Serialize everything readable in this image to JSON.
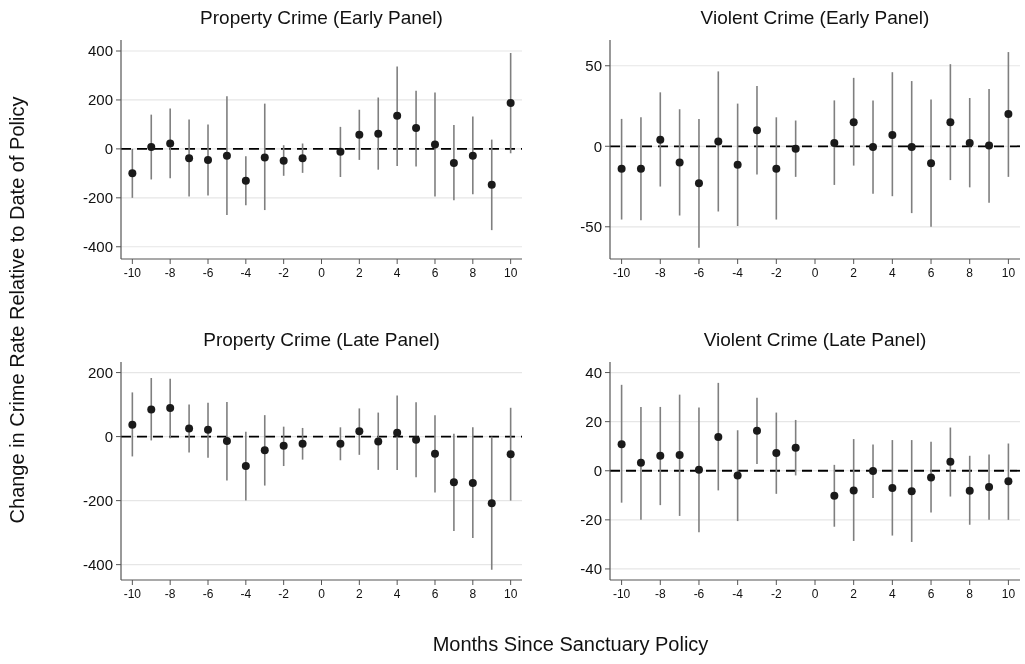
{
  "chart_data": [
    {
      "type": "scatter",
      "title": "Property Crime (Early Panel)",
      "ylabel": "Change in Crime Rate Relative to Date of Policy",
      "x": [
        -10,
        -9,
        -8,
        -7,
        -6,
        -5,
        -4,
        -3,
        -2,
        -1,
        1,
        2,
        3,
        4,
        5,
        6,
        7,
        8,
        9,
        10
      ],
      "series": [
        {
          "color": "#1a1a1a",
          "values": [
            -100,
            8,
            22,
            -38,
            -45,
            -28,
            -130,
            -35,
            -48,
            -38,
            -12,
            58,
            62,
            135,
            85,
            18,
            -58,
            -28,
            -147,
            188
          ],
          "errors": [
            [
              -200,
              0
            ],
            [
              -125,
              140
            ],
            [
              -120,
              165
            ],
            [
              -195,
              120
            ],
            [
              -190,
              100
            ],
            [
              -270,
              215
            ],
            [
              -230,
              -30
            ],
            [
              -250,
              185
            ],
            [
              -110,
              15
            ],
            [
              -98,
              22
            ],
            [
              -115,
              90
            ],
            [
              -45,
              160
            ],
            [
              -85,
              210
            ],
            [
              -70,
              337
            ],
            [
              -72,
              238
            ],
            [
              -195,
              230
            ],
            [
              -210,
              98
            ],
            [
              -185,
              132
            ],
            [
              -332,
              38
            ],
            [
              -18,
              392
            ]
          ]
        }
      ],
      "xlim": [
        -10.6,
        10.6
      ],
      "xticks": [
        -10,
        -8,
        -6,
        -4,
        -2,
        0,
        2,
        4,
        6,
        8,
        10
      ],
      "ylim": [
        -450,
        445
      ],
      "yticks": [
        -400,
        -200,
        0,
        200,
        400
      ],
      "ref_lines": [
        {
          "axis": "y",
          "value": 0,
          "color": "#000000",
          "line_style": "dashed"
        }
      ],
      "grid": "y",
      "marker": "circle"
    },
    {
      "type": "scatter",
      "title": "Violent Crime (Early Panel)",
      "x": [
        -10,
        -9,
        -8,
        -7,
        -6,
        -5,
        -4,
        -3,
        -2,
        -1,
        1,
        2,
        3,
        4,
        5,
        6,
        7,
        8,
        9,
        10
      ],
      "series": [
        {
          "color": "#1a1a1a",
          "values": [
            -14,
            -14,
            4,
            -10,
            -23,
            3,
            -11.5,
            10,
            -14,
            -1.5,
            2,
            15,
            -0.5,
            7,
            -0.5,
            -10.5,
            15,
            2,
            0.5,
            20
          ],
          "errors": [
            [
              -45.5,
              17
            ],
            [
              -46,
              18
            ],
            [
              -25,
              33.5
            ],
            [
              -43,
              23
            ],
            [
              -63,
              17
            ],
            [
              -40.5,
              46.5
            ],
            [
              -49.5,
              26.5
            ],
            [
              -17.5,
              37.5
            ],
            [
              -45.5,
              18
            ],
            [
              -19,
              16
            ],
            [
              -24,
              28.5
            ],
            [
              -12,
              42.5
            ],
            [
              -29.5,
              28.5
            ],
            [
              -31,
              46
            ],
            [
              -41.5,
              40.5
            ],
            [
              -50,
              29
            ],
            [
              -21,
              51
            ],
            [
              -25.5,
              30
            ],
            [
              -35,
              35.5
            ],
            [
              -19,
              58.5
            ]
          ]
        }
      ],
      "xlim": [
        -10.6,
        10.6
      ],
      "xticks": [
        -10,
        -8,
        -6,
        -4,
        -2,
        0,
        2,
        4,
        6,
        8,
        10
      ],
      "ylim": [
        -70,
        66
      ],
      "yticks": [
        -50,
        0,
        50
      ],
      "ref_lines": [
        {
          "axis": "y",
          "value": 0,
          "color": "#000000",
          "line_style": "dashed"
        }
      ],
      "grid": "y",
      "marker": "circle"
    },
    {
      "type": "scatter",
      "title": "Property Crime (Late Panel)",
      "xlabel": "Months Since Sanctuary Policy",
      "x": [
        -10,
        -9,
        -8,
        -7,
        -6,
        -5,
        -4,
        -3,
        -2,
        -1,
        1,
        2,
        3,
        4,
        5,
        6,
        7,
        8,
        9,
        10
      ],
      "series": [
        {
          "color": "#1a1a1a",
          "values": [
            37,
            85,
            89,
            25,
            21,
            -14,
            -92,
            -43,
            -29,
            -22,
            -22,
            17,
            -15,
            12,
            -10,
            -54,
            -143,
            -145,
            -208,
            -55
          ],
          "errors": [
            [
              -62,
              138
            ],
            [
              -12,
              183
            ],
            [
              -5,
              181
            ],
            [
              -50,
              100
            ],
            [
              -66,
              106
            ],
            [
              -137,
              108
            ],
            [
              -200,
              15
            ],
            [
              -153,
              67
            ],
            [
              -92,
              31
            ],
            [
              -72,
              27
            ],
            [
              -74,
              29
            ],
            [
              -57,
              88
            ],
            [
              -104,
              75
            ],
            [
              -104,
              128
            ],
            [
              -127,
              107
            ],
            [
              -175,
              67
            ],
            [
              -295,
              9
            ],
            [
              -317,
              29
            ],
            [
              -416,
              0
            ],
            [
              -200,
              90
            ]
          ]
        }
      ],
      "xlim": [
        -10.6,
        10.6
      ],
      "xticks": [
        -10,
        -8,
        -6,
        -4,
        -2,
        0,
        2,
        4,
        6,
        8,
        10
      ],
      "ylim": [
        -448,
        233
      ],
      "yticks": [
        -400,
        -200,
        0,
        200
      ],
      "ref_lines": [
        {
          "axis": "y",
          "value": 0,
          "color": "#000000",
          "line_style": "dashed"
        }
      ],
      "grid": "y",
      "marker": "circle"
    },
    {
      "type": "scatter",
      "title": "Violent Crime (Late Panel)",
      "x": [
        -10,
        -9,
        -8,
        -7,
        -6,
        -5,
        -4,
        -3,
        -2,
        -1,
        1,
        2,
        3,
        4,
        5,
        6,
        7,
        8,
        9,
        10
      ],
      "series": [
        {
          "color": "#1a1a1a",
          "values": [
            10.8,
            3.3,
            6.1,
            6.4,
            0.4,
            13.8,
            -1.9,
            16.3,
            7.2,
            9.4,
            -10.2,
            -8,
            -0.1,
            -7,
            -8.3,
            -2.7,
            3.7,
            -8.1,
            -6.6,
            -4.3
          ],
          "errors": [
            [
              -13,
              35
            ],
            [
              -20,
              26
            ],
            [
              -14,
              26
            ],
            [
              -18.4,
              31
            ],
            [
              -25,
              25.8
            ],
            [
              -8,
              35.8
            ],
            [
              -20.5,
              16.5
            ],
            [
              2.8,
              29.7
            ],
            [
              -9.4,
              23.7
            ],
            [
              -1.9,
              20.7
            ],
            [
              -22.8,
              2.4
            ],
            [
              -28.6,
              12.9
            ],
            [
              -11.1,
              10.7
            ],
            [
              -26.4,
              12.5
            ],
            [
              -29,
              12.5
            ],
            [
              -17,
              11.8
            ],
            [
              -10.5,
              17.6
            ],
            [
              -22,
              6.1
            ],
            [
              -20,
              6.6
            ],
            [
              -20,
              11.1
            ]
          ]
        }
      ],
      "xlim": [
        -10.6,
        10.6
      ],
      "xticks": [
        -10,
        -8,
        -6,
        -4,
        -2,
        0,
        2,
        4,
        6,
        8,
        10
      ],
      "ylim": [
        -44.5,
        44.3
      ],
      "yticks": [
        -40,
        -20,
        0,
        20,
        40
      ],
      "ref_lines": [
        {
          "axis": "y",
          "value": 0,
          "color": "#000000",
          "line_style": "dashed"
        }
      ],
      "grid": "y",
      "marker": "circle"
    }
  ]
}
